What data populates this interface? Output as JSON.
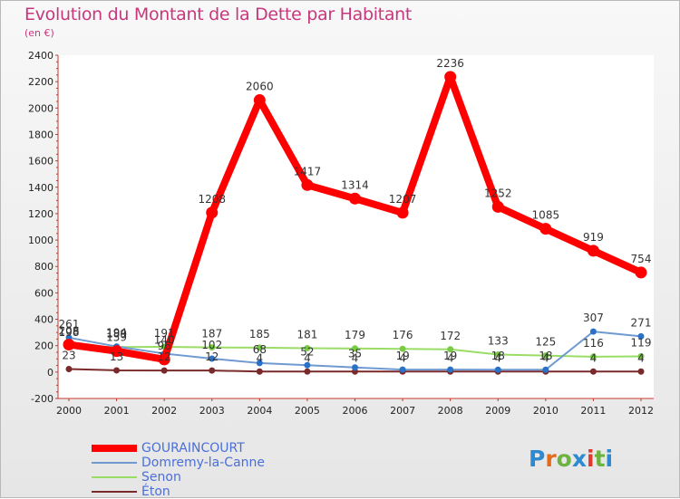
{
  "title": "Evolution du Montant de la Dette par Habitant",
  "unit_label": "(en €)",
  "logo": {
    "text": "Proxiti",
    "colors": [
      "#2d89d0",
      "#e56b1b",
      "#6cb33f",
      "#2d89d0",
      "#e03a2f",
      "#6cb33f",
      "#2d89d0"
    ]
  },
  "chart_data": {
    "type": "line",
    "x": [
      "2000",
      "2001",
      "2002",
      "2003",
      "2004",
      "2005",
      "2006",
      "2007",
      "2008",
      "2009",
      "2010",
      "2011",
      "2012"
    ],
    "ylim": [
      -200,
      2400
    ],
    "yticks": [
      -200,
      0,
      200,
      400,
      600,
      800,
      1000,
      1200,
      1400,
      1600,
      1800,
      2000,
      2200,
      2400
    ],
    "grid": false,
    "legend_position": "bottom",
    "series": [
      {
        "name": "GOURAINCOURT",
        "color": "#ff0000",
        "values": [
          208,
          159,
          96,
          1208,
          2060,
          1417,
          1314,
          1207,
          2236,
          1252,
          1085,
          919,
          754
        ],
        "labels": [
          "208",
          "159",
          "96",
          "1208",
          "2060",
          "1417",
          "1314",
          "1207",
          "2236",
          "1252",
          "1085",
          "919",
          "754"
        ]
      },
      {
        "name": "Domremy-la-Canne",
        "color": "#6f9ad1",
        "values": [
          261,
          194,
          140,
          102,
          68,
          52,
          35,
          19,
          19,
          18,
          18,
          307,
          271
        ],
        "labels": [
          "261",
          "194",
          "140",
          "102",
          "68",
          "52",
          "35",
          "19",
          "19",
          "18",
          "18",
          "307",
          "271"
        ]
      },
      {
        "name": "Senon",
        "color": "#99dd66",
        "values": [
          198,
          189,
          191,
          187,
          185,
          181,
          179,
          176,
          172,
          133,
          125,
          116,
          119
        ],
        "labels": [
          "198",
          "189",
          "191",
          "187",
          "185",
          "181",
          "179",
          "176",
          "172",
          "133",
          "125",
          "116",
          "119"
        ]
      },
      {
        "name": "Éton",
        "color": "#7a2a2a",
        "values": [
          23,
          13,
          12,
          12,
          4,
          4,
          4,
          4,
          4,
          4,
          4,
          4,
          4
        ],
        "labels": [
          "23",
          "13",
          "12",
          "12",
          "4",
          "4",
          "4",
          "4",
          "4",
          "4",
          "4",
          "4",
          "4"
        ]
      }
    ]
  }
}
